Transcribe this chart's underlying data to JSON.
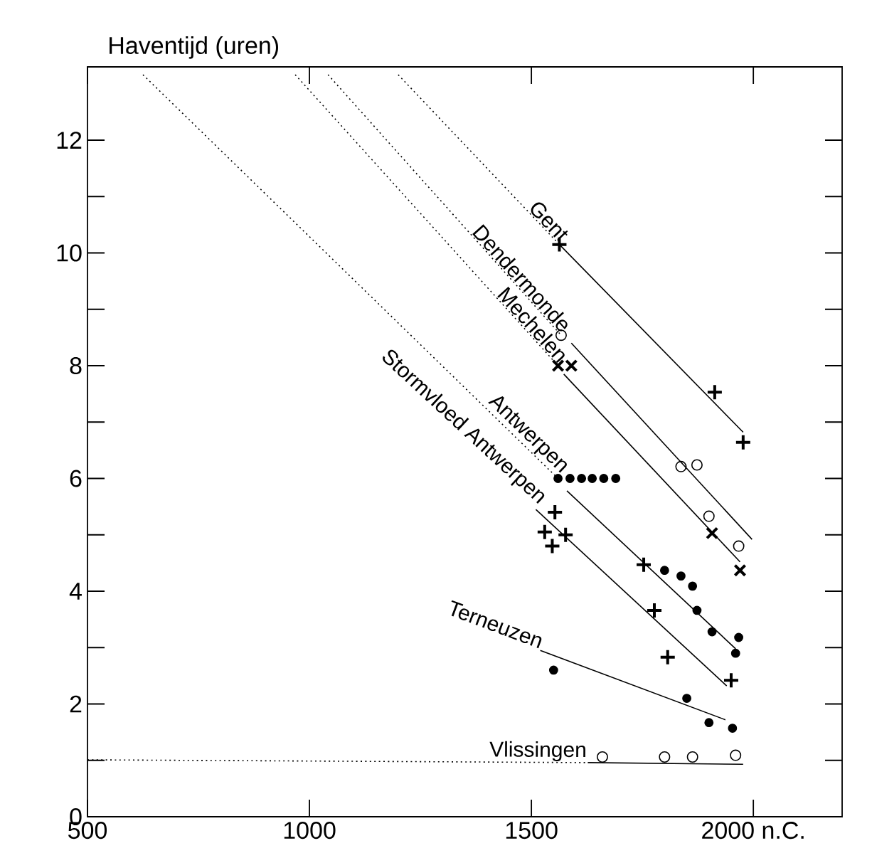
{
  "chart_data": {
    "type": "scatter",
    "ylabel": "Haventijd (uren)",
    "xlim": [
      500,
      2200
    ],
    "ylim": [
      0,
      13.3
    ],
    "xticks": [
      500,
      1000,
      1500,
      {
        "value": 2000,
        "label": "2000 n.C."
      }
    ],
    "yticks": [
      0,
      {
        "value": 1,
        "label": null
      },
      2,
      {
        "value": 3,
        "label": null
      },
      4,
      {
        "value": 5,
        "label": null
      },
      6,
      {
        "value": 7,
        "label": null
      },
      8,
      {
        "value": 9,
        "label": null
      },
      10,
      {
        "value": 11,
        "label": null
      },
      12
    ],
    "series": [
      {
        "marker": "plus",
        "color": "#000000",
        "x": [
          1563,
          1913,
          1977
        ],
        "values": [
          10.15,
          7.53,
          6.64
        ]
      },
      {
        "type": "line",
        "line_style": "solid",
        "color": "#000000",
        "x": [
          1563,
          1977
        ],
        "values": [
          10.15,
          6.82
        ]
      },
      {
        "type": "line",
        "line_style": "dotted",
        "name": "Gent",
        "color": "#000000",
        "x": [
          1200,
          1563
        ],
        "values": [
          13.16,
          10.15
        ]
      },
      {
        "marker": "circle-open",
        "color": "#000000",
        "x": [
          1567,
          1837,
          1873,
          1900,
          1967
        ],
        "values": [
          8.54,
          6.21,
          6.24,
          5.33,
          4.8
        ]
      },
      {
        "type": "line",
        "line_style": "solid",
        "color": "#000000",
        "x": [
          1590,
          1997
        ],
        "values": [
          8.4,
          4.92
        ]
      },
      {
        "type": "line",
        "line_style": "dotted",
        "name": "Dendermonde",
        "color": "#000000",
        "x": [
          1042,
          1567
        ],
        "values": [
          13.16,
          8.54
        ]
      },
      {
        "marker": "cross",
        "color": "#000000",
        "x": [
          1560,
          1590,
          1907,
          1970
        ],
        "values": [
          8.0,
          8.0,
          5.03,
          4.37
        ]
      },
      {
        "type": "line",
        "line_style": "solid",
        "color": "#000000",
        "x": [
          1573,
          1970
        ],
        "values": [
          7.85,
          4.52
        ]
      },
      {
        "type": "line",
        "line_style": "dotted",
        "name": "Mechelen",
        "color": "#000000",
        "x": [
          968,
          1560
        ],
        "values": [
          13.16,
          8.0
        ]
      },
      {
        "marker": "circle",
        "color": "#000000",
        "x": [
          1560,
          1587,
          1613,
          1637,
          1663,
          1690,
          1800,
          1837,
          1863,
          1873,
          1907,
          1967,
          1960
        ],
        "values": [
          6.0,
          6.0,
          6.0,
          6.0,
          6.0,
          6.0,
          4.37,
          4.27,
          4.09,
          3.66,
          3.28,
          3.18,
          2.9
        ]
      },
      {
        "type": "line",
        "line_style": "solid",
        "color": "#000000",
        "x": [
          1580,
          1960
        ],
        "values": [
          5.78,
          2.98
        ]
      },
      {
        "type": "line",
        "line_style": "dotted",
        "name": "Antwerpen",
        "color": "#000000",
        "x": [
          625,
          1560
        ],
        "values": [
          13.16,
          6.0
        ]
      },
      {
        "marker": "plus",
        "color": "#000000",
        "x": [
          1553,
          1530,
          1577,
          1547,
          1753,
          1777,
          1807,
          1950
        ],
        "values": [
          5.4,
          5.05,
          5.0,
          4.8,
          4.47,
          3.66,
          2.83,
          2.42
        ]
      },
      {
        "type": "line",
        "line_style": "solid",
        "name": "Stormvloed Antwerpen",
        "color": "#000000",
        "x": [
          1510,
          1940
        ],
        "values": [
          5.45,
          2.32
        ]
      },
      {
        "marker": "circle",
        "color": "#000000",
        "x": [
          1550,
          1850,
          1900,
          1953
        ],
        "values": [
          2.6,
          2.1,
          1.67,
          1.57
        ]
      },
      {
        "type": "line",
        "line_style": "solid",
        "name": "Terneuzen",
        "color": "#000000",
        "x": [
          1520,
          1937
        ],
        "values": [
          2.95,
          1.72
        ]
      },
      {
        "marker": "circle-open",
        "color": "#000000",
        "x": [
          1660,
          1800,
          1863,
          1960
        ],
        "values": [
          1.06,
          1.06,
          1.06,
          1.09
        ]
      },
      {
        "type": "line",
        "line_style": "solid",
        "color": "#000000",
        "x": [
          1627,
          1977
        ],
        "values": [
          0.96,
          0.93
        ]
      },
      {
        "type": "line",
        "line_style": "dotted",
        "name": "Vlissingen",
        "color": "#000000",
        "x": [
          500,
          1627
        ],
        "values": [
          1.01,
          0.96
        ]
      }
    ]
  }
}
